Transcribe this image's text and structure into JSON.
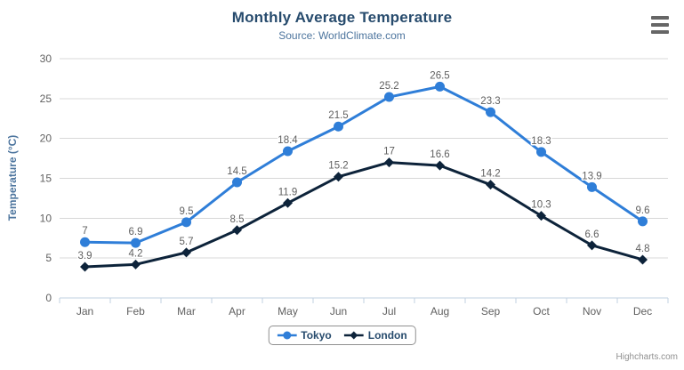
{
  "credits": {
    "label": "Highcharts.com"
  },
  "export_menu": {
    "icon": "hamburger-icon"
  },
  "colors": {
    "title": "#274b6d",
    "subtitle": "#4d759e",
    "axis_title": "#4d759e",
    "tick_label": "#606060",
    "data_label": "#606060",
    "grid_line": "#d8d8d8",
    "axis_line": "#c0d0e0",
    "legend_border": "#909090",
    "legend_text": "#274b6d",
    "credits": "#909090",
    "menu_icon": "#666666",
    "background": "#ffffff"
  },
  "chart_data": {
    "type": "line",
    "title": "Monthly Average Temperature",
    "subtitle": "Source: WorldClimate.com",
    "xlabel": "",
    "ylabel": "Temperature (°C)",
    "ylim": [
      0,
      30
    ],
    "yticks": [
      0,
      5,
      10,
      15,
      20,
      25,
      30
    ],
    "grid": true,
    "data_labels": true,
    "legend_position": "bottom-center",
    "categories": [
      "Jan",
      "Feb",
      "Mar",
      "Apr",
      "May",
      "Jun",
      "Jul",
      "Aug",
      "Sep",
      "Oct",
      "Nov",
      "Dec"
    ],
    "series": [
      {
        "name": "Tokyo",
        "color": "#2f7ed8",
        "marker": "circle",
        "values": [
          7,
          6.9,
          9.5,
          14.5,
          18.4,
          21.5,
          25.2,
          26.5,
          23.3,
          18.3,
          13.9,
          9.6
        ]
      },
      {
        "name": "London",
        "color": "#0d233a",
        "marker": "diamond",
        "values": [
          3.9,
          4.2,
          5.7,
          8.5,
          11.9,
          15.2,
          17,
          16.6,
          14.2,
          10.3,
          6.6,
          4.8
        ]
      }
    ]
  }
}
